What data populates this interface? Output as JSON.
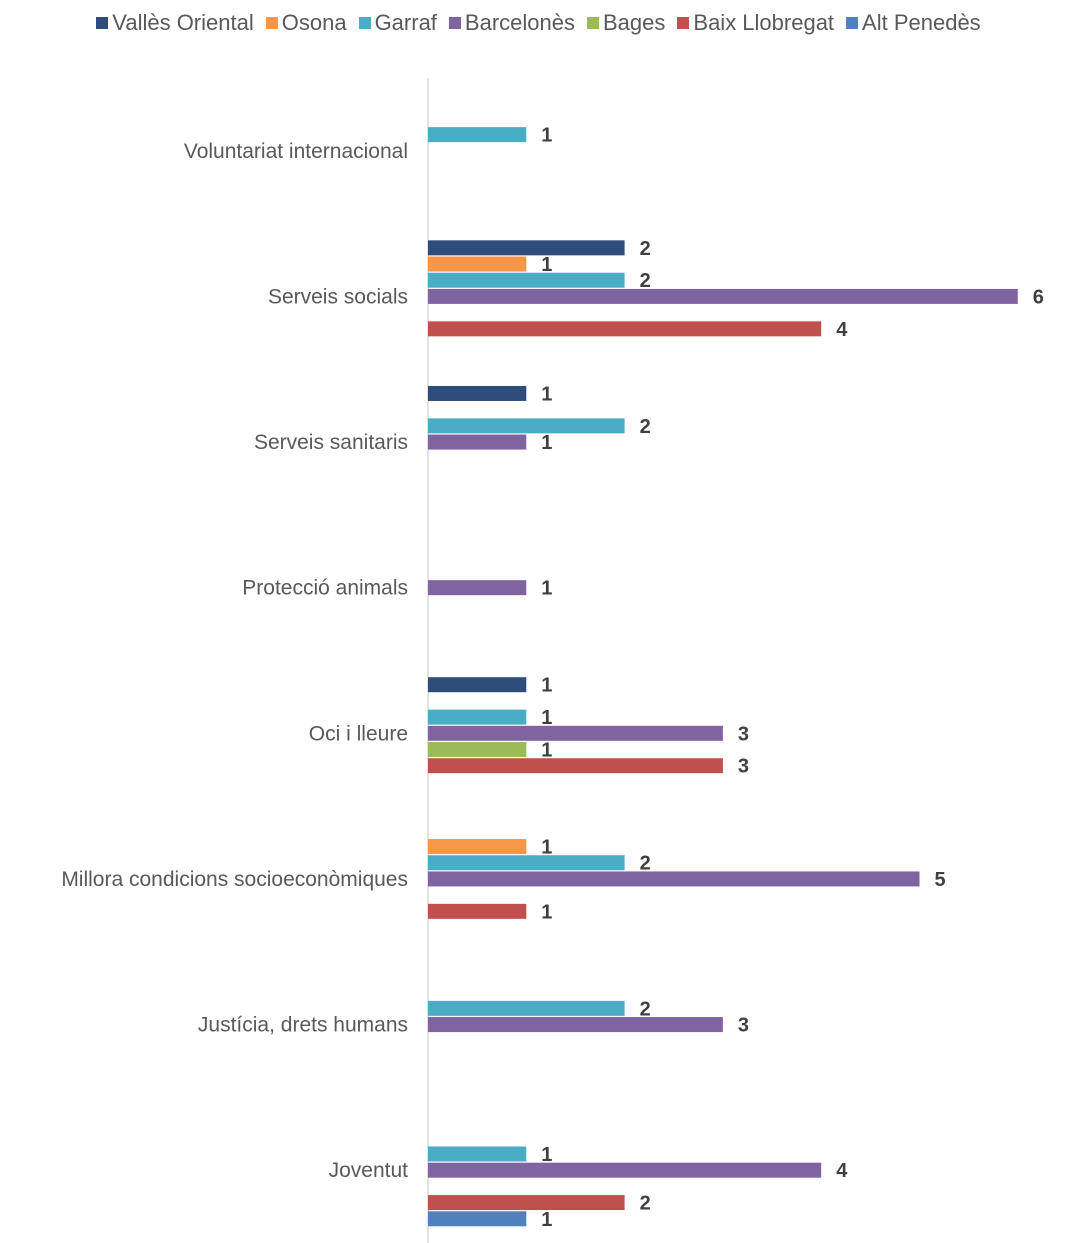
{
  "chart_data": {
    "type": "bar",
    "orientation": "horizontal",
    "categories": [
      "Voluntariat internacional",
      "Serveis socials",
      "Serveis sanitaris",
      "Protecció animals",
      "Oci i lleure",
      "Millora condicions socioeconòmiques",
      "Justícia, drets humans",
      "Joventut"
    ],
    "series": [
      {
        "name": "Vallès Oriental",
        "color": "#2E4D7A",
        "values": [
          null,
          2,
          1,
          null,
          1,
          null,
          null,
          null
        ]
      },
      {
        "name": "Osona",
        "color": "#F79646",
        "values": [
          null,
          1,
          null,
          null,
          null,
          1,
          null,
          null
        ]
      },
      {
        "name": "Garraf",
        "color": "#4BACC6",
        "values": [
          1,
          2,
          2,
          null,
          1,
          2,
          2,
          1
        ]
      },
      {
        "name": "Barcelonès",
        "color": "#8064A2",
        "values": [
          null,
          6,
          1,
          1,
          3,
          5,
          3,
          4
        ]
      },
      {
        "name": "Bages",
        "color": "#9BBB59",
        "values": [
          null,
          null,
          null,
          null,
          1,
          null,
          null,
          null
        ]
      },
      {
        "name": "Baix Llobregat",
        "color": "#C0504D",
        "values": [
          null,
          4,
          null,
          null,
          3,
          1,
          null,
          2
        ]
      },
      {
        "name": "Alt Penedès",
        "color": "#4F81BD",
        "values": [
          null,
          null,
          null,
          null,
          null,
          null,
          null,
          1
        ]
      }
    ],
    "legend_position": "top",
    "grid": false,
    "data_labels": true
  }
}
